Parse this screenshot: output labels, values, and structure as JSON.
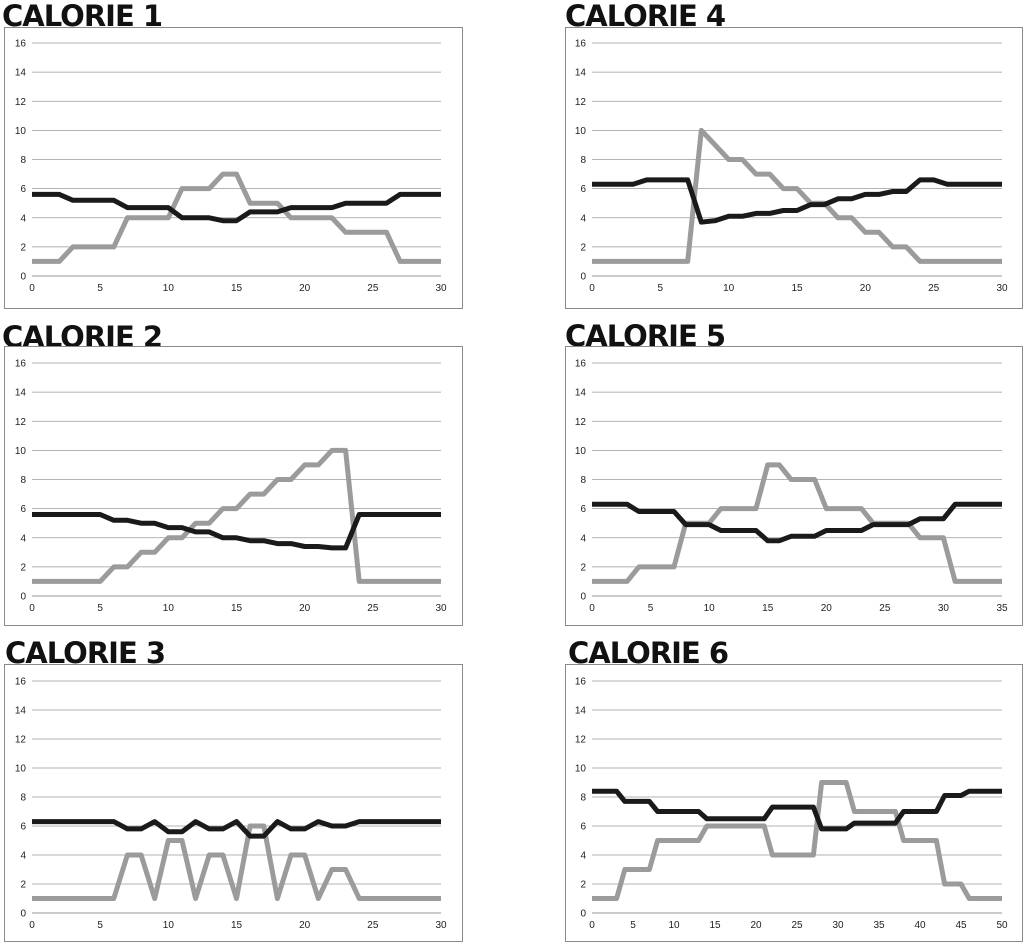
{
  "colors": {
    "series_dark": "#1a1a1a",
    "series_light": "#9b9b9b",
    "grid": "#9a9a9a",
    "frame": "#8a8a8a"
  },
  "chart_data": [
    {
      "type": "line",
      "title": "CALORIE 1",
      "ylim": [
        0,
        16
      ],
      "yticks": [
        0,
        2,
        4,
        6,
        8,
        10,
        12,
        14,
        16
      ],
      "xlim": [
        0,
        30
      ],
      "xticks": [
        0,
        5,
        10,
        15,
        20,
        25,
        30
      ],
      "grid": true,
      "series": [
        {
          "color": "#1a1a1a",
          "values": [
            5.6,
            5.6,
            5.6,
            5.2,
            5.2,
            5.2,
            5.2,
            4.7,
            4.7,
            4.7,
            4.7,
            4.0,
            4.0,
            4.0,
            3.8,
            3.8,
            4.4,
            4.4,
            4.4,
            4.7,
            4.7,
            4.7,
            4.7,
            5.0,
            5.0,
            5.0,
            5.0,
            5.6,
            5.6,
            5.6,
            5.6
          ]
        },
        {
          "color": "#9b9b9b",
          "values": [
            1,
            1,
            1,
            2,
            2,
            2,
            2,
            4,
            4,
            4,
            4,
            6,
            6,
            6,
            7,
            7,
            5,
            5,
            5,
            4,
            4,
            4,
            4,
            3,
            3,
            3,
            3,
            1,
            1,
            1,
            1
          ]
        }
      ]
    },
    {
      "type": "line",
      "title": "CALORIE 4",
      "ylim": [
        0,
        16
      ],
      "yticks": [
        0,
        2,
        4,
        6,
        8,
        10,
        12,
        14,
        16
      ],
      "xlim": [
        0,
        30
      ],
      "xticks": [
        0,
        5,
        10,
        15,
        20,
        25,
        30
      ],
      "grid": true,
      "series": [
        {
          "color": "#1a1a1a",
          "values": [
            6.3,
            6.3,
            6.3,
            6.3,
            6.6,
            6.6,
            6.6,
            6.6,
            3.7,
            3.8,
            4.1,
            4.1,
            4.3,
            4.3,
            4.5,
            4.5,
            4.9,
            4.9,
            5.3,
            5.3,
            5.6,
            5.6,
            5.8,
            5.8,
            6.6,
            6.6,
            6.3,
            6.3,
            6.3,
            6.3,
            6.3
          ]
        },
        {
          "color": "#9b9b9b",
          "values": [
            1,
            1,
            1,
            1,
            1,
            1,
            1,
            1,
            10,
            9,
            8,
            8,
            7,
            7,
            6,
            6,
            5,
            5,
            4,
            4,
            3,
            3,
            2,
            2,
            1,
            1,
            1,
            1,
            1,
            1,
            1
          ]
        }
      ]
    },
    {
      "type": "line",
      "title": "CALORIE 2",
      "ylim": [
        0,
        16
      ],
      "yticks": [
        0,
        2,
        4,
        6,
        8,
        10,
        12,
        14,
        16
      ],
      "xlim": [
        0,
        30
      ],
      "xticks": [
        0,
        5,
        10,
        15,
        20,
        25,
        30
      ],
      "grid": true,
      "series": [
        {
          "color": "#1a1a1a",
          "values": [
            5.6,
            5.6,
            5.6,
            5.6,
            5.6,
            5.6,
            5.2,
            5.2,
            5.0,
            5.0,
            4.7,
            4.7,
            4.4,
            4.4,
            4.0,
            4.0,
            3.8,
            3.8,
            3.6,
            3.6,
            3.4,
            3.4,
            3.3,
            3.3,
            5.6,
            5.6,
            5.6,
            5.6,
            5.6,
            5.6,
            5.6
          ]
        },
        {
          "color": "#9b9b9b",
          "values": [
            1,
            1,
            1,
            1,
            1,
            1,
            2,
            2,
            3,
            3,
            4,
            4,
            5,
            5,
            6,
            6,
            7,
            7,
            8,
            8,
            9,
            9,
            10,
            10,
            1,
            1,
            1,
            1,
            1,
            1,
            1
          ]
        }
      ]
    },
    {
      "type": "line",
      "title": "CALORIE 5",
      "ylim": [
        0,
        16
      ],
      "yticks": [
        0,
        2,
        4,
        6,
        8,
        10,
        12,
        14,
        16
      ],
      "xlim": [
        0,
        35
      ],
      "xticks": [
        0,
        5,
        10,
        15,
        20,
        25,
        30,
        35
      ],
      "grid": true,
      "series": [
        {
          "color": "#1a1a1a",
          "values": [
            6.3,
            6.3,
            6.3,
            6.3,
            5.8,
            5.8,
            5.8,
            5.8,
            4.9,
            4.9,
            4.9,
            4.5,
            4.5,
            4.5,
            4.5,
            3.8,
            3.8,
            4.1,
            4.1,
            4.1,
            4.5,
            4.5,
            4.5,
            4.5,
            4.9,
            4.9,
            4.9,
            4.9,
            5.3,
            5.3,
            5.3,
            6.3,
            6.3,
            6.3,
            6.3,
            6.3
          ]
        },
        {
          "color": "#9b9b9b",
          "values": [
            1,
            1,
            1,
            1,
            2,
            2,
            2,
            2,
            5,
            5,
            5,
            6,
            6,
            6,
            6,
            9,
            9,
            8,
            8,
            8,
            6,
            6,
            6,
            6,
            5,
            5,
            5,
            5,
            4,
            4,
            4,
            1,
            1,
            1,
            1,
            1
          ]
        }
      ]
    },
    {
      "type": "line",
      "title": "CALORIE 3",
      "ylim": [
        0,
        16
      ],
      "yticks": [
        0,
        2,
        4,
        6,
        8,
        10,
        12,
        14,
        16
      ],
      "xlim": [
        0,
        30
      ],
      "xticks": [
        0,
        5,
        10,
        15,
        20,
        25,
        30
      ],
      "grid": true,
      "series": [
        {
          "color": "#1a1a1a",
          "values": [
            6.3,
            6.3,
            6.3,
            6.3,
            6.3,
            6.3,
            6.3,
            5.8,
            5.8,
            6.3,
            5.6,
            5.6,
            6.3,
            5.8,
            5.8,
            6.3,
            5.3,
            5.3,
            6.3,
            5.8,
            5.8,
            6.3,
            6.0,
            6.0,
            6.3,
            6.3,
            6.3,
            6.3,
            6.3,
            6.3,
            6.3
          ]
        },
        {
          "color": "#9b9b9b",
          "values": [
            1,
            1,
            1,
            1,
            1,
            1,
            1,
            4,
            4,
            1,
            5,
            5,
            1,
            4,
            4,
            1,
            6,
            6,
            1,
            4,
            4,
            1,
            3,
            3,
            1,
            1,
            1,
            1,
            1,
            1,
            1
          ]
        }
      ]
    },
    {
      "type": "line",
      "title": "CALORIE 6",
      "ylim": [
        0,
        16
      ],
      "yticks": [
        0,
        2,
        4,
        6,
        8,
        10,
        12,
        14,
        16
      ],
      "xlim": [
        0,
        50
      ],
      "xticks": [
        0,
        5,
        10,
        15,
        20,
        25,
        30,
        35,
        40,
        45,
        50
      ],
      "grid": true,
      "series": [
        {
          "color": "#1a1a1a",
          "values": [
            8.4,
            8.4,
            8.4,
            8.4,
            7.7,
            7.7,
            7.7,
            7.7,
            7.0,
            7.0,
            7.0,
            7.0,
            7.0,
            7.0,
            6.5,
            6.5,
            6.5,
            6.5,
            6.5,
            6.5,
            6.5,
            6.5,
            7.3,
            7.3,
            7.3,
            7.3,
            7.3,
            7.3,
            5.8,
            5.8,
            5.8,
            5.8,
            6.2,
            6.2,
            6.2,
            6.2,
            6.2,
            6.2,
            7.0,
            7.0,
            7.0,
            7.0,
            7.0,
            8.1,
            8.1,
            8.1,
            8.4,
            8.4,
            8.4,
            8.4,
            8.4
          ]
        },
        {
          "color": "#9b9b9b",
          "values": [
            1,
            1,
            1,
            1,
            3,
            3,
            3,
            3,
            5,
            5,
            5,
            5,
            5,
            5,
            6,
            6,
            6,
            6,
            6,
            6,
            6,
            6,
            4,
            4,
            4,
            4,
            4,
            4,
            9,
            9,
            9,
            9,
            7,
            7,
            7,
            7,
            7,
            7,
            5,
            5,
            5,
            5,
            5,
            2,
            2,
            2,
            1,
            1,
            1,
            1,
            1
          ]
        }
      ]
    }
  ]
}
